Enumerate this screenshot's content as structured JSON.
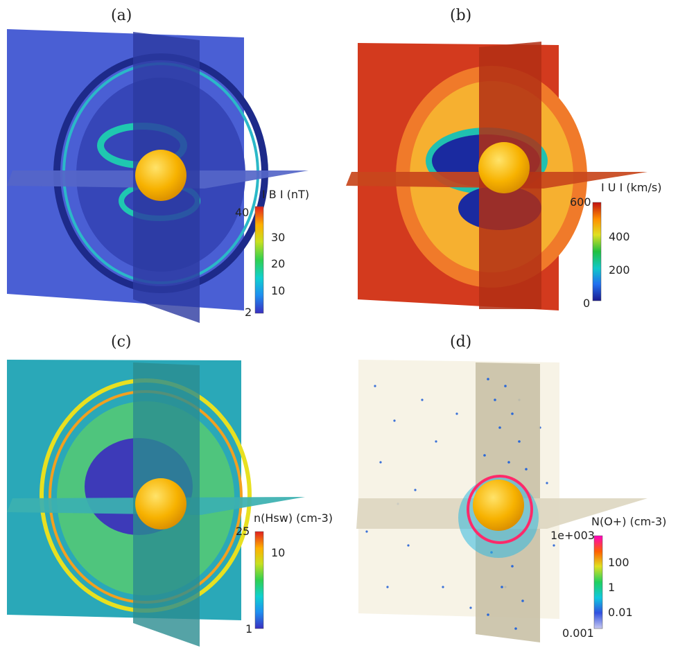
{
  "panels": {
    "a": {
      "label": "(a)",
      "colorbar_title": "I B I  (nT)",
      "ticks": [
        "40",
        "30",
        "20",
        "10",
        "2"
      ],
      "colors": {
        "background": "#4a5fd4",
        "colormap": [
          "#3a2fc0",
          "#1e8ff0",
          "#10d0d0",
          "#30d050",
          "#c8e020",
          "#ffb000",
          "#e02020"
        ]
      }
    },
    "b": {
      "label": "(b)",
      "colorbar_title": "I U I  (km/s)",
      "ticks": [
        "600",
        "400",
        "200",
        "0"
      ],
      "colors": {
        "background": "#d33a1e",
        "colormap": [
          "#1a1a90",
          "#2070f0",
          "#10c8c8",
          "#20c040",
          "#e0e020",
          "#ff9000",
          "#c01010"
        ]
      }
    },
    "c": {
      "label": "(c)",
      "colorbar_title": "n(Hsw) (cm-3)",
      "ticks": [
        "25",
        "10",
        "1"
      ],
      "colors": {
        "background": "#2aa8b8",
        "colormap": [
          "#3a2fc0",
          "#1e8ff0",
          "#10d0d0",
          "#30d050",
          "#c8e020",
          "#ffb000",
          "#e02020"
        ]
      }
    },
    "d": {
      "label": "(d)",
      "colorbar_title": "N(O+) (cm-3)",
      "ticks": [
        "1e+003",
        "100",
        "1",
        "0.01",
        "0.001"
      ],
      "colors": {
        "background": "#f7f3e6",
        "colormap": [
          "#c8c8f0",
          "#3050e0",
          "#10c8e0",
          "#20d060",
          "#e0e020",
          "#ff6000",
          "#ff00c0"
        ]
      }
    }
  }
}
